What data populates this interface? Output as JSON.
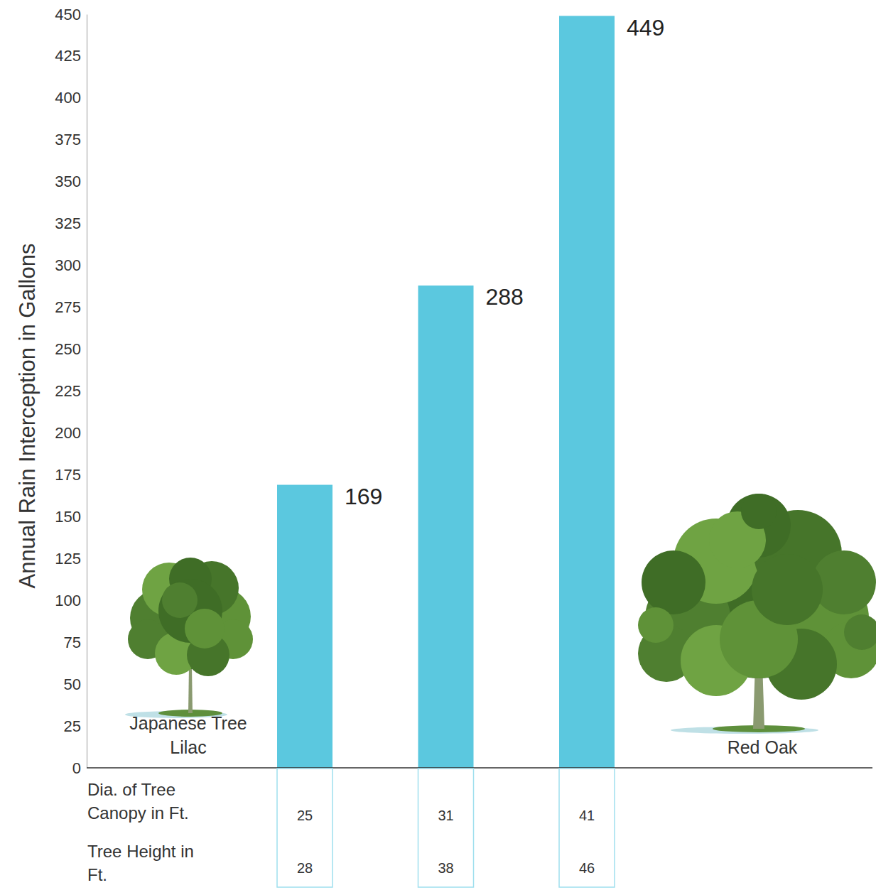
{
  "chart_data": {
    "type": "bar",
    "y_label": "Annual Rain Interception in Gallons",
    "categories": [
      null,
      null,
      null
    ],
    "values": [
      169,
      288,
      449
    ],
    "color": "#5bc8df",
    "ylim": [
      0,
      450
    ],
    "yticks": [
      0,
      25,
      50,
      75,
      100,
      125,
      150,
      175,
      200,
      225,
      250,
      275,
      300,
      325,
      350,
      375,
      400,
      425,
      450
    ],
    "grid": false,
    "data_labels": true,
    "annotations": [
      "Japanese Tree Lilac",
      "Red Oak"
    ],
    "table": {
      "rows": [
        {
          "label": "Dia. of Tree Canopy in Ft.",
          "values": [
            25,
            31,
            41
          ]
        },
        {
          "label": "Tree Height in Ft.",
          "values": [
            28,
            38,
            46
          ]
        }
      ]
    }
  }
}
